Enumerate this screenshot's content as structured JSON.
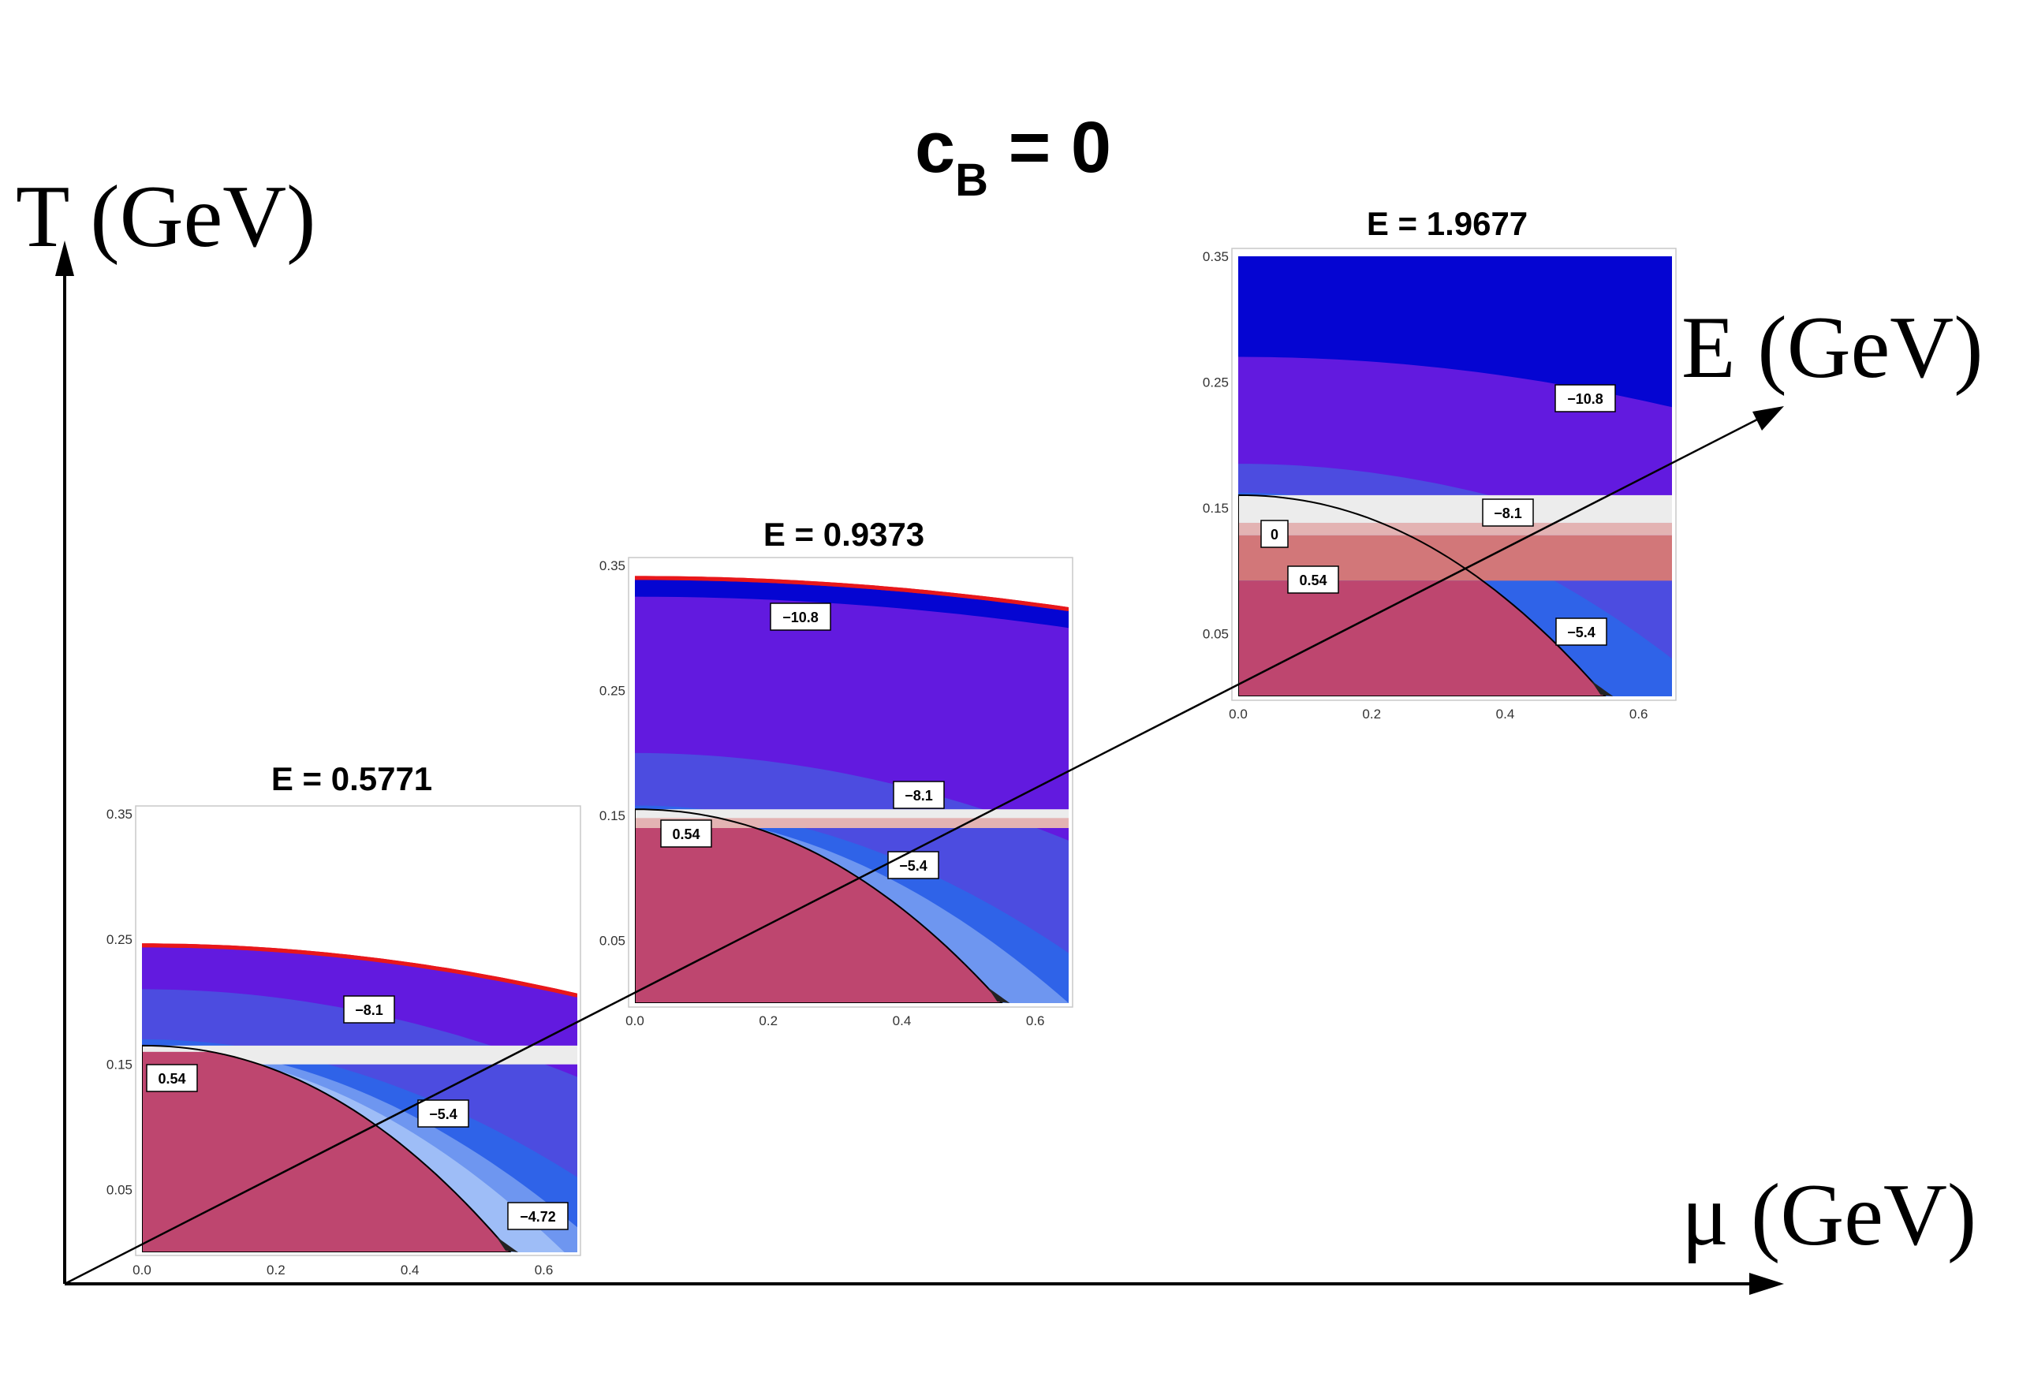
{
  "figure": {
    "title_main": "c",
    "title_sub": "B",
    "title_rest": " = 0"
  },
  "axes": {
    "t_label": "T (GeV)",
    "e_label": "E (GeV)",
    "mu_label": "μ (GeV)"
  },
  "chart_data": [
    {
      "type": "contour",
      "title": "E = 0.5771",
      "xlim": [
        0.0,
        0.65
      ],
      "ylim": [
        0.0,
        0.35
      ],
      "xticks": [
        "0.0",
        "0.2",
        "0.4",
        "0.6"
      ],
      "yticks": [
        "0.05",
        "0.15",
        "0.25",
        "0.35"
      ],
      "contour_labels": [
        "0.54",
        "−8.1",
        "−5.4",
        "−4.72"
      ],
      "red_boundary_T": [
        0.245,
        0.205
      ],
      "phase_boundary_T0": 0.16,
      "phase_boundary_mu_end": 0.55
    },
    {
      "type": "contour",
      "title": "E = 0.9373",
      "xlim": [
        0.0,
        0.65
      ],
      "ylim": [
        0.0,
        0.35
      ],
      "xticks": [
        "0.0",
        "0.2",
        "0.4",
        "0.6"
      ],
      "yticks": [
        "0.05",
        "0.15",
        "0.25",
        "0.35"
      ],
      "contour_labels": [
        "−10.8",
        "−8.1",
        "0.54",
        "−5.4"
      ],
      "red_boundary_T": [
        0.34,
        0.315
      ],
      "phase_boundary_T0": 0.14,
      "phase_boundary_mu_end": 0.55
    },
    {
      "type": "contour",
      "title": "E = 1.9677",
      "xlim": [
        0.0,
        0.65
      ],
      "ylim": [
        0.0,
        0.35
      ],
      "xticks": [
        "0.0",
        "0.2",
        "0.4",
        "0.6"
      ],
      "yticks": [
        "0.05",
        "0.15",
        "0.25",
        "0.35"
      ],
      "contour_labels": [
        "−10.8",
        "−8.1",
        "0",
        "0.54",
        "−5.4"
      ],
      "red_boundary_T": null,
      "phase_boundary_T0": 0.155,
      "phase_boundary_mu_end": 0.55
    }
  ],
  "colors": {
    "crimson": "#BE466F",
    "pink1": "#D27779",
    "pink2": "#E3B3B3",
    "pale": "#ECECEC",
    "blue_dark": "#0505D2",
    "violet": "#621ADF",
    "blue_mid": "#4C4CE0",
    "blue_bright": "#2F63E8",
    "blue_light": "#6E96F0",
    "blue_pale": "#9EBDF7",
    "red_line": "#E8171B"
  }
}
